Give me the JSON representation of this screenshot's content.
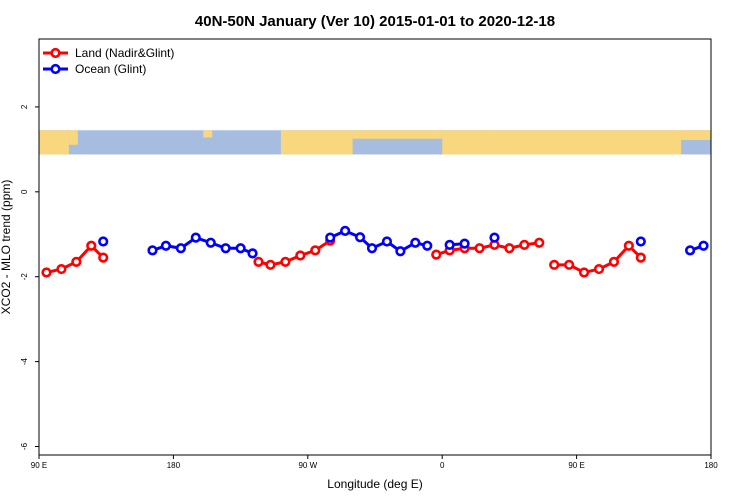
{
  "chart_data": {
    "type": "line",
    "title": "40N-50N January (Ver 10)   2015-01-01 to 2020-12-18",
    "xlabel": "Longitude (deg E)",
    "ylabel": "XCO2 - MLO trend (ppm)",
    "xlim": [
      90,
      540
    ],
    "ylim": [
      -6.2,
      3.6
    ],
    "x_ticks": [
      {
        "value": 90,
        "label": "90 E"
      },
      {
        "value": 180,
        "label": "180"
      },
      {
        "value": 270,
        "label": "90 W"
      },
      {
        "value": 360,
        "label": "0"
      },
      {
        "value": 450,
        "label": "90 E"
      },
      {
        "value": 540,
        "label": "180"
      }
    ],
    "y_ticks": [
      {
        "value": 2,
        "label": "2"
      },
      {
        "value": 0,
        "label": "0"
      },
      {
        "value": -2,
        "label": "-2"
      },
      {
        "value": -4,
        "label": "-4"
      },
      {
        "value": -6,
        "label": "-6"
      }
    ],
    "legend_position": "top-left",
    "map_strip": {
      "y_top": 1.45,
      "y_bottom": 0.88,
      "ocean_color": "#a7bddf",
      "land_color": "#f8d77f"
    },
    "series": [
      {
        "name": "Land (Nadir&Glint)",
        "color": "#ff0000",
        "segments": [
          [
            [
              95,
              -1.9
            ],
            [
              105,
              -1.82
            ],
            [
              115,
              -1.65
            ],
            [
              125,
              -1.27
            ],
            [
              133,
              -1.55
            ]
          ],
          [
            [
              237,
              -1.65
            ],
            [
              245,
              -1.72
            ],
            [
              255,
              -1.65
            ],
            [
              265,
              -1.5
            ],
            [
              275,
              -1.38
            ],
            [
              285,
              -1.15
            ]
          ],
          [
            [
              356,
              -1.48
            ],
            [
              365,
              -1.38
            ],
            [
              375,
              -1.33
            ],
            [
              385,
              -1.33
            ],
            [
              395,
              -1.25
            ],
            [
              405,
              -1.33
            ],
            [
              415,
              -1.25
            ],
            [
              425,
              -1.2
            ]
          ],
          [
            [
              435,
              -1.72
            ],
            [
              445,
              -1.72
            ],
            [
              455,
              -1.9
            ],
            [
              465,
              -1.82
            ],
            [
              475,
              -1.65
            ],
            [
              485,
              -1.27
            ],
            [
              493,
              -1.55
            ]
          ]
        ]
      },
      {
        "name": "Ocean (Glint)",
        "color": "#0000ff",
        "segments": [
          [
            [
              133,
              -1.17
            ]
          ],
          [
            [
              166,
              -1.38
            ],
            [
              175,
              -1.27
            ],
            [
              185,
              -1.33
            ],
            [
              195,
              -1.08
            ],
            [
              205,
              -1.2
            ],
            [
              215,
              -1.33
            ],
            [
              225,
              -1.33
            ],
            [
              233,
              -1.45
            ]
          ],
          [
            [
              285,
              -1.08
            ],
            [
              295,
              -0.92
            ],
            [
              305,
              -1.07
            ],
            [
              313,
              -1.33
            ],
            [
              323,
              -1.17
            ],
            [
              332,
              -1.4
            ],
            [
              342,
              -1.2
            ],
            [
              350,
              -1.27
            ]
          ],
          [
            [
              365,
              -1.25
            ],
            [
              375,
              -1.22
            ]
          ],
          [
            [
              395,
              -1.08
            ]
          ],
          [
            [
              493,
              -1.17
            ]
          ],
          [
            [
              526,
              -1.38
            ],
            [
              535,
              -1.27
            ]
          ]
        ]
      }
    ]
  }
}
